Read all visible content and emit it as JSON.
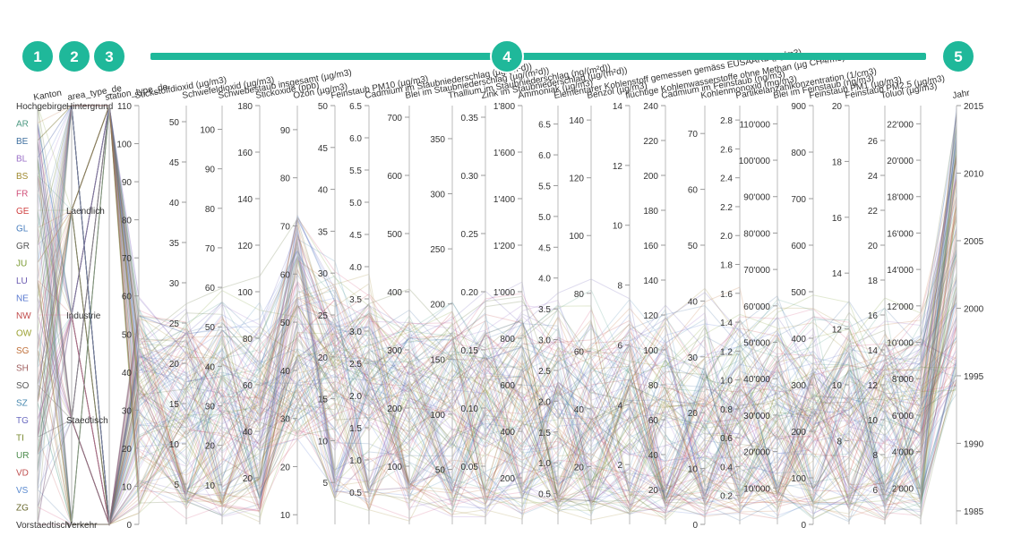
{
  "chart_data": {
    "type": "parallel-coordinates",
    "badges": [
      {
        "label": "1",
        "color": "#1fb89a"
      },
      {
        "label": "2",
        "color": "#1fb89a"
      },
      {
        "label": "3",
        "color": "#1fb89a"
      },
      {
        "label": "4",
        "color": "#1fb89a"
      },
      {
        "label": "5",
        "color": "#1fb89a"
      }
    ],
    "bar_color": "#1fb89a",
    "categorical_axes": [
      {
        "name": "Kanton",
        "categories": [
          "Hochgebirge",
          "AR",
          "BE",
          "BL",
          "BS",
          "FR",
          "GE",
          "GL",
          "GR",
          "JU",
          "LU",
          "NE",
          "NW",
          "OW",
          "SG",
          "SH",
          "SO",
          "SZ",
          "TG",
          "TI",
          "UR",
          "VD",
          "VS",
          "ZG",
          "Vorstaedtisch"
        ],
        "category_colors": [
          "#333333",
          "#4e9a83",
          "#3f6f9f",
          "#9a6fc7",
          "#a08a30",
          "#d0507a",
          "#d04040",
          "#4a7fbf",
          "#555555",
          "#7a9a30",
          "#6a5ab0",
          "#5a7ad0",
          "#c04a4a",
          "#9aa030",
          "#c0703a",
          "#a06060",
          "#5a5a5a",
          "#4a8ab0",
          "#6a6ac0",
          "#7a8a30",
          "#4a8a4a",
          "#c05050",
          "#5a8ad0",
          "#6a6a30",
          "#333333"
        ]
      },
      {
        "name": "area_type_de",
        "categories": [
          "Hintergrund",
          "Laendlich",
          "Industrie",
          "Staedtisch",
          "Verkehr"
        ]
      },
      {
        "name": "station_type_de",
        "categories": [
          ""
        ]
      }
    ],
    "numeric_axes": [
      {
        "name": "Stickstoffdioxid (µg/m3)",
        "ticks": [
          "0",
          "10",
          "20",
          "30",
          "40",
          "50",
          "60",
          "70",
          "80",
          "90",
          "100",
          "110"
        ],
        "min": 0,
        "max": 110
      },
      {
        "name": "Schwefeldioxid (µg/m3)",
        "ticks": [
          "5",
          "10",
          "15",
          "20",
          "25",
          "30",
          "35",
          "40",
          "45",
          "50"
        ],
        "min": 0,
        "max": 52
      },
      {
        "name": "Schwebestaub insgesamt (µg/m3)",
        "ticks": [
          "10",
          "20",
          "30",
          "40",
          "50",
          "60",
          "70",
          "80",
          "90",
          "100"
        ],
        "min": 0,
        "max": 106
      },
      {
        "name": "Stickoxide (ppb)",
        "ticks": [
          "20",
          "40",
          "60",
          "80",
          "100",
          "120",
          "140",
          "160",
          "180"
        ],
        "min": 0,
        "max": 180
      },
      {
        "name": "Ozon (µg/m3)",
        "ticks": [
          "10",
          "20",
          "30",
          "40",
          "50",
          "60",
          "70",
          "80",
          "90"
        ],
        "min": 8,
        "max": 95
      },
      {
        "name": "Feinstaub PM10 (µg/m3)",
        "ticks": [
          "5",
          "10",
          "15",
          "20",
          "25",
          "30",
          "35",
          "40",
          "45",
          "50"
        ],
        "min": 0,
        "max": 50
      },
      {
        "name": "Cadmium im Staubniederschlag (µg/(m²d))",
        "ticks": [
          "0.5",
          "1.0",
          "1.5",
          "2.0",
          "2.5",
          "3.0",
          "3.5",
          "4.0",
          "4.5",
          "5.0",
          "5.5",
          "6.0",
          "6.5"
        ],
        "min": 0,
        "max": 6.5
      },
      {
        "name": "Blei im Staubniederschlag (µg/(m²d))",
        "ticks": [
          "100",
          "200",
          "300",
          "400",
          "500",
          "600",
          "700"
        ],
        "min": 0,
        "max": 720
      },
      {
        "name": "Thallium im Staubniederschlag (ng/(m²d))",
        "ticks": [
          "50",
          "100",
          "150",
          "200",
          "250",
          "300",
          "350"
        ],
        "min": 0,
        "max": 380
      },
      {
        "name": "Zink im Staubniederschlag (µg/(m²d))",
        "ticks": [
          "0.05",
          "0.10",
          "0.15",
          "0.20",
          "0.25",
          "0.30",
          "0.35"
        ],
        "min": 0,
        "max": 0.36
      },
      {
        "name": "Ammoniak (µg/m3)",
        "ticks": [
          "200",
          "400",
          "600",
          "800",
          "1'000",
          "1'200",
          "1'400",
          "1'600",
          "1'800"
        ],
        "min": 0,
        "max": 1800
      },
      {
        "name": "Elementarer Kohlenstoff gemessen gemäss EUSAAR2 (µg/m3)",
        "ticks": [
          "0.5",
          "1.0",
          "1.5",
          "2.0",
          "2.5",
          "3.0",
          "3.5",
          "4.0",
          "4.5",
          "5.0",
          "5.5",
          "6.0",
          "6.5"
        ],
        "min": 0,
        "max": 6.8
      },
      {
        "name": "Benzol (µg/m3)",
        "ticks": [
          "20",
          "40",
          "60",
          "80",
          "100",
          "120",
          "140"
        ],
        "min": 0,
        "max": 145
      },
      {
        "name": "flüchtige Kohlenwasserstoffe ohne Methan (µg CH4/m3)",
        "ticks": [
          "2",
          "4",
          "6",
          "8",
          "10",
          "12",
          "14"
        ],
        "min": 0,
        "max": 14
      },
      {
        "name": "Cadmium im Feinstaub (ng/m3)",
        "ticks": [
          "20",
          "40",
          "60",
          "80",
          "100",
          "120",
          "140",
          "160",
          "180",
          "200",
          "220",
          "240"
        ],
        "min": 0,
        "max": 240
      },
      {
        "name": "Kohlenmonoxid (mg/m3)",
        "ticks": [
          "0",
          "10",
          "20",
          "30",
          "40",
          "50",
          "60",
          "70"
        ],
        "min": 0,
        "max": 75
      },
      {
        "name": "Partikelanzahlkonzentration (1/cm3)",
        "ticks": [
          "0.2",
          "0.4",
          "0.6",
          "0.8",
          "1.0",
          "1.2",
          "1.4",
          "1.6",
          "1.8",
          "2.0",
          "2.2",
          "2.4",
          "2.6",
          "2.8"
        ],
        "min": 0,
        "max": 2.9
      },
      {
        "name": "Blei im Feinstaub (ng/m3)",
        "ticks": [
          "10'000",
          "20'000",
          "30'000",
          "40'000",
          "50'000",
          "60'000",
          "70'000",
          "80'000",
          "90'000",
          "100'000",
          "110'000"
        ],
        "min": 0,
        "max": 115000
      },
      {
        "name": "Feinstaub PM1 (µg/m3)",
        "ticks": [
          "0",
          "100",
          "200",
          "300",
          "400",
          "500",
          "600",
          "700",
          "800",
          "900"
        ],
        "min": 0,
        "max": 900
      },
      {
        "name": "Feinstaub PM2.5 (µg/m3)",
        "ticks": [
          "8",
          "10",
          "12",
          "14",
          "16",
          "18",
          "20"
        ],
        "min": 5,
        "max": 20
      },
      {
        "name": "Toluol (µg/m3)",
        "ticks": [
          "6",
          "8",
          "10",
          "12",
          "14",
          "16",
          "18",
          "20",
          "22",
          "24",
          "26"
        ],
        "min": 4,
        "max": 28
      },
      {
        "name": "",
        "ticks": [
          "2'000",
          "4'000",
          "6'000",
          "8'000",
          "10'000",
          "12'000",
          "14'000",
          "16'000",
          "18'000",
          "20'000",
          "22'000"
        ],
        "min": 0,
        "max": 23000
      },
      {
        "name": "Jahr",
        "ticks": [
          "1985",
          "1990",
          "1995",
          "2000",
          "2005",
          "2010",
          "2015"
        ],
        "min": 1984,
        "max": 2015
      }
    ],
    "series_colors": [
      "#4e9a83",
      "#3f6f9f",
      "#9a6fc7",
      "#d0507a",
      "#a08a30",
      "#5a7ad0",
      "#7a9a30",
      "#c0703a",
      "#4a8ab0",
      "#6a5ab0",
      "#c04a4a",
      "#556b2f"
    ]
  }
}
